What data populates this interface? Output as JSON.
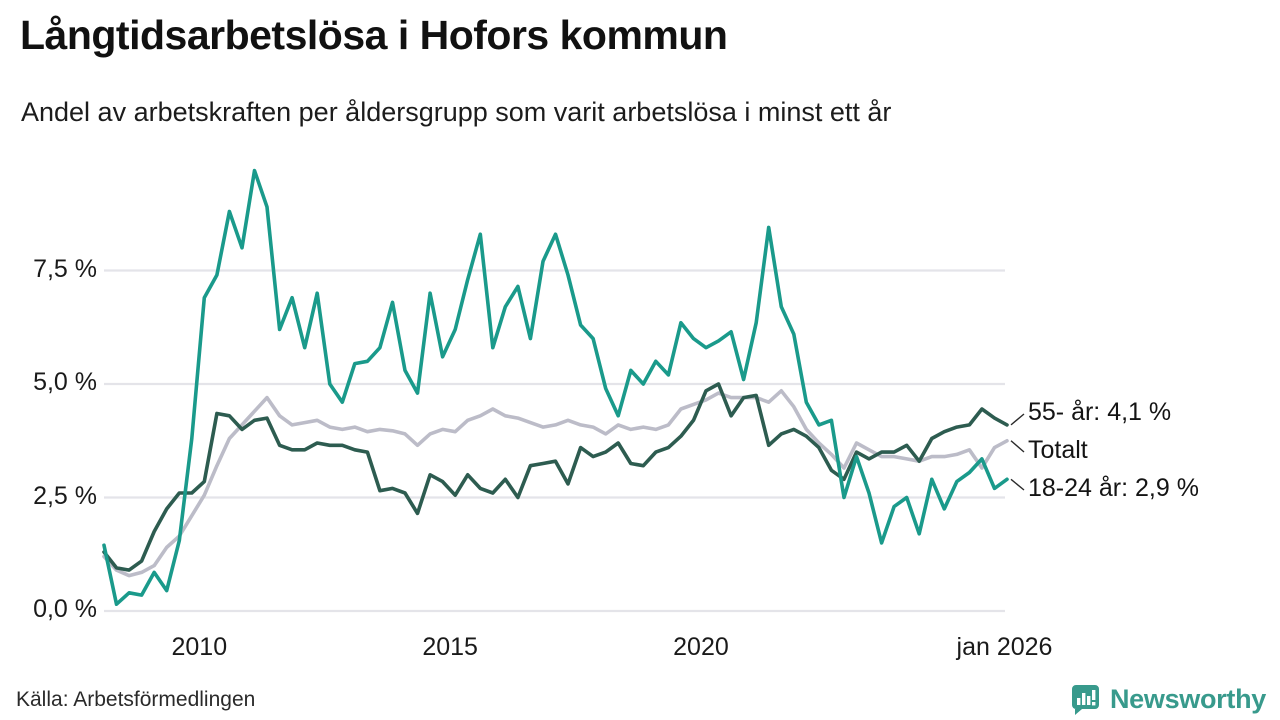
{
  "source": {
    "label": "Källa: Arbetsförmedlingen"
  },
  "branding": {
    "wordmark": "Newsworthy",
    "icon": "bar-chart-speech-bubble-icon",
    "color": "#389a8c"
  },
  "colors": {
    "background": "#ffffff",
    "grid": "#e4e4e9",
    "axis_text": "#1a1a1a",
    "connector": "#2a2a2a"
  },
  "chart_data": {
    "type": "line",
    "title": "Långtidsarbetslösa i Hofors kommun",
    "subtitle": "Andel av arbetskraften per åldersgrupp som varit arbetslösa i minst ett år",
    "unit": "%",
    "grid": true,
    "legend_position": "right-annotations",
    "x_range": [
      2008.1,
      2026.1
    ],
    "y_range": [
      0,
      10
    ],
    "x_ticks": [
      {
        "label": "2010",
        "t": 2010
      },
      {
        "label": "2015",
        "t": 2015
      },
      {
        "label": "2020",
        "t": 2020
      },
      {
        "label": "jan 2026",
        "t": 2026.05
      }
    ],
    "y_ticks": [
      {
        "label": "0,0 %",
        "v": 0
      },
      {
        "label": "2,5 %",
        "v": 2.5
      },
      {
        "label": "5,0 %",
        "v": 5
      },
      {
        "label": "7,5 %",
        "v": 7.5
      }
    ],
    "x": [
      2008.1,
      2008.35,
      2008.6,
      2008.85,
      2009.1,
      2009.35,
      2009.6,
      2009.85,
      2010.1,
      2010.35,
      2010.6,
      2010.85,
      2011.1,
      2011.35,
      2011.6,
      2011.85,
      2012.1,
      2012.35,
      2012.6,
      2012.85,
      2013.1,
      2013.35,
      2013.6,
      2013.85,
      2014.1,
      2014.35,
      2014.6,
      2014.85,
      2015.1,
      2015.35,
      2015.6,
      2015.85,
      2016.1,
      2016.35,
      2016.6,
      2016.85,
      2017.1,
      2017.35,
      2017.6,
      2017.85,
      2018.1,
      2018.35,
      2018.6,
      2018.85,
      2019.1,
      2019.35,
      2019.6,
      2019.85,
      2020.1,
      2020.35,
      2020.6,
      2020.85,
      2021.1,
      2021.35,
      2021.6,
      2021.85,
      2022.1,
      2022.35,
      2022.6,
      2022.85,
      2023.1,
      2023.35,
      2023.6,
      2023.85,
      2024.1,
      2024.35,
      2024.6,
      2024.85,
      2025.1,
      2025.35,
      2025.6,
      2025.85,
      2026.1
    ],
    "series": [
      {
        "name": "Totalt",
        "color": "#bcbcc8",
        "annotation": "Totalt",
        "last_value_label": "",
        "values": [
          1.2,
          0.9,
          0.78,
          0.85,
          1.0,
          1.4,
          1.65,
          2.1,
          2.55,
          3.2,
          3.8,
          4.1,
          4.4,
          4.7,
          4.3,
          4.1,
          4.15,
          4.2,
          4.05,
          4.0,
          4.05,
          3.95,
          4.0,
          3.97,
          3.9,
          3.65,
          3.9,
          4.0,
          3.95,
          4.2,
          4.3,
          4.45,
          4.3,
          4.25,
          4.15,
          4.05,
          4.1,
          4.2,
          4.1,
          4.05,
          3.9,
          4.1,
          4.0,
          4.05,
          4.0,
          4.1,
          4.45,
          4.55,
          4.65,
          4.8,
          4.7,
          4.7,
          4.7,
          4.6,
          4.85,
          4.5,
          4.0,
          3.7,
          3.45,
          3.15,
          3.7,
          3.55,
          3.4,
          3.4,
          3.35,
          3.3,
          3.4,
          3.4,
          3.45,
          3.55,
          3.15,
          3.6,
          3.75
        ]
      },
      {
        "name": "55- år",
        "color": "#2d5c50",
        "annotation": "55- år: 4,1 %",
        "last_value_label": "4,1 %",
        "values": [
          1.3,
          0.95,
          0.9,
          1.1,
          1.75,
          2.25,
          2.6,
          2.6,
          2.85,
          4.35,
          4.3,
          4.0,
          4.2,
          4.25,
          3.65,
          3.55,
          3.55,
          3.7,
          3.65,
          3.65,
          3.55,
          3.5,
          2.65,
          2.7,
          2.6,
          2.15,
          3.0,
          2.85,
          2.55,
          3.0,
          2.7,
          2.6,
          2.9,
          2.5,
          3.2,
          3.25,
          3.3,
          2.8,
          3.6,
          3.4,
          3.5,
          3.7,
          3.25,
          3.2,
          3.5,
          3.6,
          3.85,
          4.2,
          4.85,
          5.0,
          4.3,
          4.7,
          4.75,
          3.65,
          3.9,
          4.0,
          3.85,
          3.6,
          3.1,
          2.9,
          3.5,
          3.35,
          3.5,
          3.5,
          3.65,
          3.3,
          3.8,
          3.95,
          4.05,
          4.1,
          4.45,
          4.25,
          4.1
        ]
      },
      {
        "name": "18-24 år",
        "color": "#1a9a8b",
        "annotation": "18-24 år: 2,9 %",
        "last_value_label": "2,9 %",
        "values": [
          1.45,
          0.15,
          0.4,
          0.35,
          0.85,
          0.45,
          1.55,
          3.8,
          6.9,
          7.4,
          8.8,
          8.0,
          9.7,
          8.9,
          6.2,
          6.9,
          5.8,
          7.0,
          5.0,
          4.6,
          5.45,
          5.5,
          5.8,
          6.8,
          5.3,
          4.8,
          7.0,
          5.6,
          6.2,
          7.3,
          8.3,
          5.8,
          6.7,
          7.15,
          6.0,
          7.7,
          8.3,
          7.4,
          6.3,
          6.0,
          4.9,
          4.3,
          5.3,
          5.0,
          5.5,
          5.2,
          6.35,
          6.0,
          5.8,
          5.95,
          6.15,
          5.1,
          6.35,
          8.45,
          6.7,
          6.1,
          4.6,
          4.1,
          4.2,
          2.5,
          3.4,
          2.6,
          1.5,
          2.3,
          2.5,
          1.7,
          2.9,
          2.25,
          2.85,
          3.05,
          3.35,
          2.7,
          2.9
        ]
      }
    ]
  }
}
